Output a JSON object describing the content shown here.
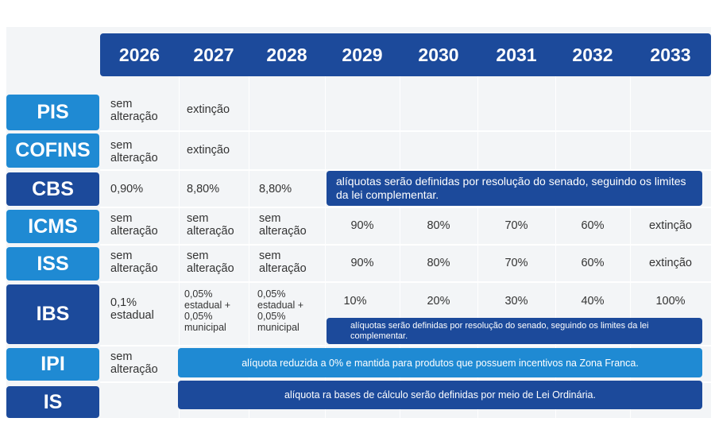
{
  "years": [
    "2026",
    "2027",
    "2028",
    "2029",
    "2030",
    "2031",
    "2032",
    "2033"
  ],
  "taxes": {
    "pis": "PIS",
    "cofins": "COFINS",
    "cbs": "CBS",
    "icms": "ICMS",
    "iss": "ISS",
    "ibs": "IBS",
    "ipi": "IPI",
    "is": "IS"
  },
  "pis": {
    "y2026": "sem alteração",
    "y2027": "extinção"
  },
  "cofins": {
    "y2026": "sem alteração",
    "y2027": "extinção"
  },
  "cbs": {
    "y2026": "0,90%",
    "y2027": "8,80%",
    "y2028": "8,80%",
    "note": "alíquotas serão definidas por resolução do senado, seguindo os limites da lei complementar."
  },
  "icms": {
    "y2026": "sem alteração",
    "y2027": "sem alteração",
    "y2028": "sem alteração",
    "y2029": "90%",
    "y2030": "80%",
    "y2031": "70%",
    "y2032": "60%",
    "y2033": "extinção"
  },
  "iss": {
    "y2026": "sem alteração",
    "y2027": "sem alteração",
    "y2028": "sem alteração",
    "y2029": "90%",
    "y2030": "80%",
    "y2031": "70%",
    "y2032": "60%",
    "y2033": "extinção"
  },
  "ibs": {
    "y2026": "0,1% estadual",
    "y2027": "0,05% estadual + 0,05% municipal",
    "y2028": "0,05% estadual + 0,05% municipal",
    "y2029": "10%",
    "y2030": "20%",
    "y2031": "30%",
    "y2032": "40%",
    "y2033": "100%",
    "note": "alíquotas serão definidas por resolução do senado, seguindo os limites da lei complementar."
  },
  "ipi": {
    "y2026": "sem alteração",
    "note": "alíquota reduzida a 0% e mantida para produtos que possuem incentivos na Zona Franca."
  },
  "is": {
    "note": "alíquota ra bases de cálculo serão definidas por meio de Lei Ordinária."
  },
  "colors": {
    "dark_blue": "#1c4a9b",
    "light_blue": "#1f8ad3",
    "panel_bg": "#f3f5f7"
  }
}
